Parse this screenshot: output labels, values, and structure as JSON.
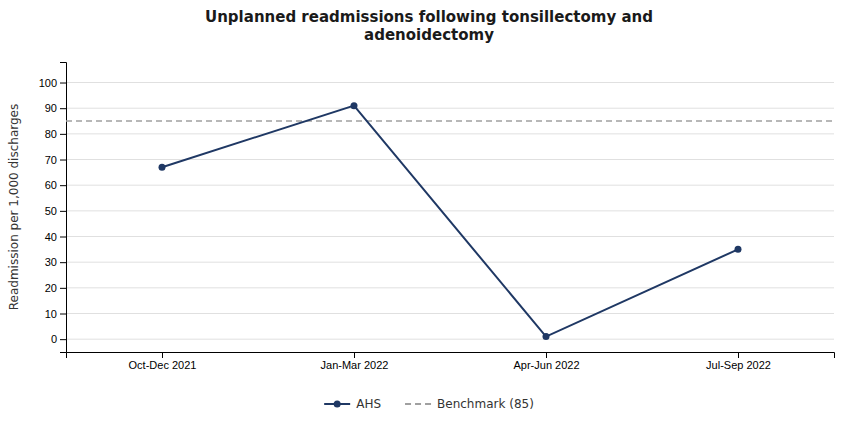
{
  "chart_data": {
    "type": "line",
    "title": "Unplanned readmissions following tonsillectomy and\nadenoidectomy",
    "y_label": "Readmission per 1,000 discharges",
    "categories": [
      "Oct-Dec 2021",
      "Jan-Mar 2022",
      "Apr-Jun 2022",
      "Jul-Sep 2022"
    ],
    "series": [
      {
        "name": "AHS",
        "color": "#1f3864",
        "values": [
          67,
          91,
          1,
          35
        ],
        "marker": "circle",
        "line_style": "solid"
      }
    ],
    "reference_lines": [
      {
        "name": "Benchmark (85)",
        "value": 85,
        "color": "#a0a0a0",
        "line_style": "dashed"
      }
    ],
    "ylim": [
      -5,
      108
    ],
    "yticks": [
      0,
      10,
      20,
      30,
      40,
      50,
      60,
      70,
      80,
      90,
      100
    ],
    "grid": true,
    "legend": "bottom"
  }
}
